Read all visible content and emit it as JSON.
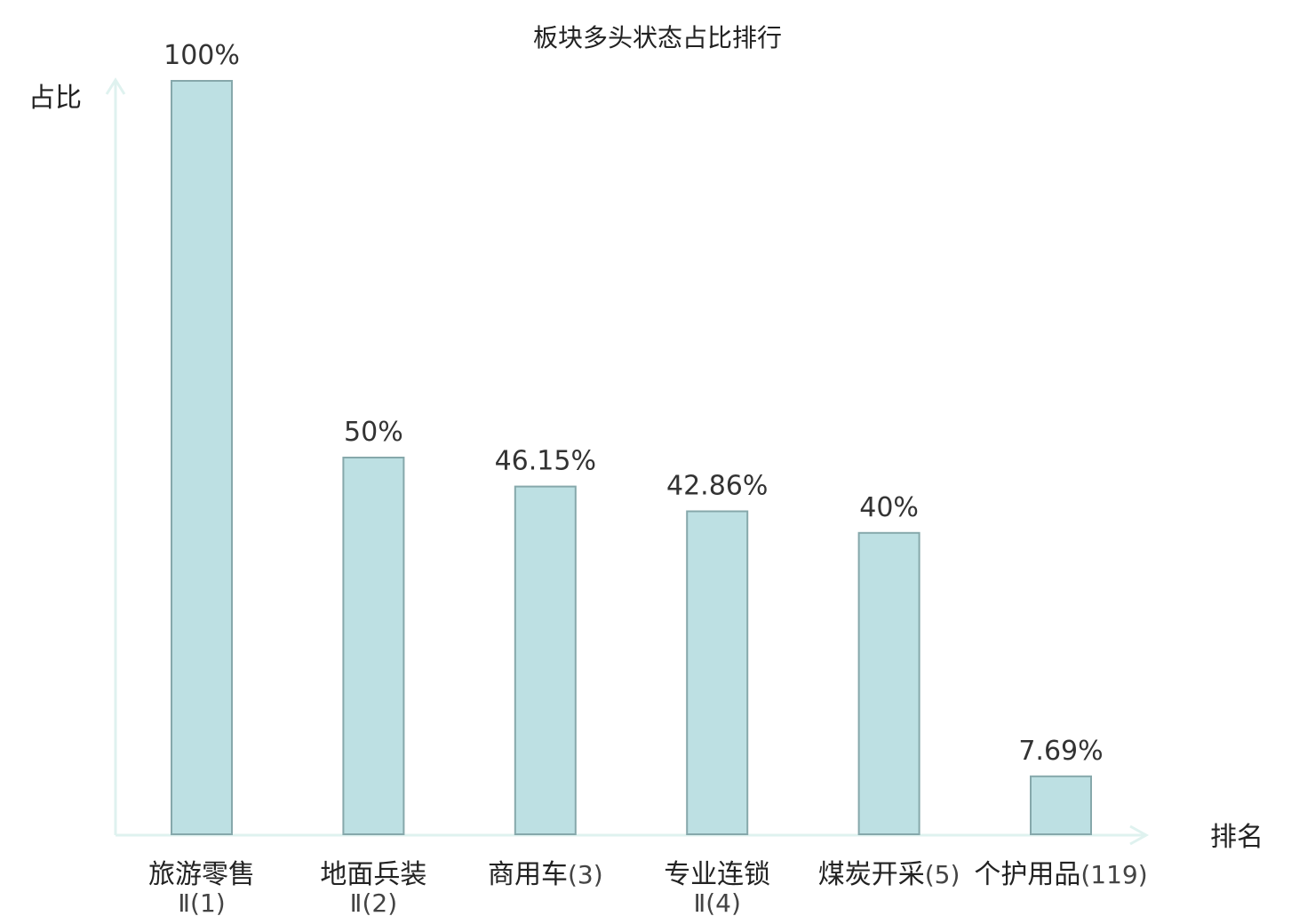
{
  "chart_data": {
    "type": "bar",
    "title": "板块多头状态占比排行",
    "ylabel": "占比",
    "xlabel": "排名",
    "ylim": [
      0,
      100
    ],
    "grid": false,
    "value_suffix": "%",
    "categories": [
      {
        "name": "旅游零售",
        "rank": "Ⅱ(1)",
        "rank_inline": false,
        "highlight": false
      },
      {
        "name": "地面兵装",
        "rank": "Ⅱ(2)",
        "rank_inline": false,
        "highlight": false
      },
      {
        "name": "商用车",
        "rank": "(3)",
        "rank_inline": true,
        "highlight": false
      },
      {
        "name": "专业连锁",
        "rank": "Ⅱ(4)",
        "rank_inline": false,
        "highlight": false
      },
      {
        "name": "煤炭开采",
        "rank": "(5)",
        "rank_inline": true,
        "highlight": false
      },
      {
        "name": "个护用品",
        "rank": "(119)",
        "rank_inline": true,
        "highlight": true
      }
    ],
    "values": [
      100,
      50,
      46.15,
      42.86,
      40,
      7.69
    ],
    "value_labels": [
      "100%",
      "50%",
      "46.15%",
      "42.86%",
      "40%",
      "7.69%"
    ]
  },
  "colors": {
    "bar_fill": "#bde0e3",
    "bar_stroke": "#86a8ab",
    "axis": "#dff2ef",
    "highlight": "#e8141b",
    "text": "#222222"
  }
}
